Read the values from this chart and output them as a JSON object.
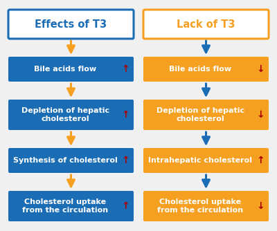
{
  "background_color": "#f0f0f0",
  "blue_box_color": "#1a6cb5",
  "orange_box_color": "#f5a020",
  "blue_arrow_color": "#1a6cb5",
  "orange_arrow_color": "#f5a020",
  "red_up_arrow": "↑",
  "red_down_arrow": "↓",
  "red_color": "#aa0000",
  "white_color": "#ffffff",
  "blue_text_color": "#1a6cb5",
  "orange_text_color": "#f5a020",
  "left_title": "Effects of T3",
  "right_title": "Lack of T3",
  "left_boxes": [
    {
      "text": "Bile acids flow",
      "arrow": "up",
      "lines": 1
    },
    {
      "text": "Depletion of hepatic\ncholesterol",
      "arrow": "up",
      "lines": 2
    },
    {
      "text": "Synthesis of cholesterol",
      "arrow": "up",
      "lines": 1
    },
    {
      "text": "Cholesterol uptake\nfrom the circulation",
      "arrow": "up",
      "lines": 2
    }
  ],
  "right_boxes": [
    {
      "text": "Bile acids flow",
      "arrow": "down",
      "lines": 1
    },
    {
      "text": "Depletion of hepatic\ncholesterol",
      "arrow": "down",
      "lines": 2
    },
    {
      "text": "Intrahepatic cholesterol",
      "arrow": "up",
      "lines": 1
    },
    {
      "text": "Cholesterol uptake\nfrom the circulation",
      "arrow": "down",
      "lines": 2
    }
  ],
  "figsize": [
    4.0,
    3.34
  ],
  "dpi": 100
}
